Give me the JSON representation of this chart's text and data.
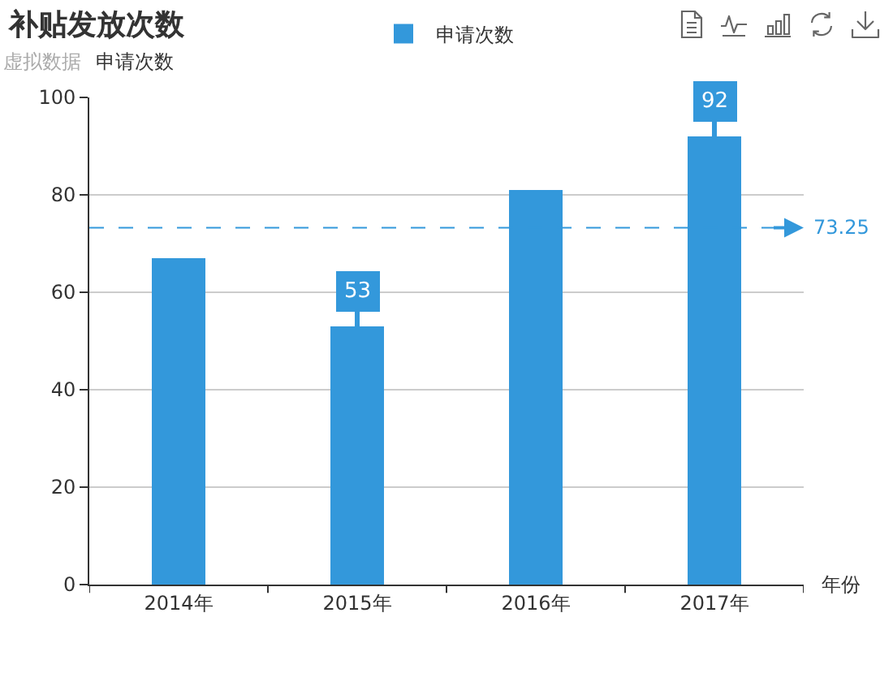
{
  "chart_data": {
    "type": "bar",
    "title": "补贴发放次数",
    "subtitle": "虚拟数据",
    "xlabel": "年份",
    "ylabel": "申请次数",
    "categories": [
      "2014年",
      "2015年",
      "2016年",
      "2017年"
    ],
    "series": [
      {
        "name": "申请次数",
        "color": "#3398db",
        "values": [
          67,
          53,
          81,
          92
        ],
        "value_labels": [
          null,
          "53",
          null,
          "92"
        ]
      }
    ],
    "ylim": [
      0,
      100
    ],
    "yticks": [
      0,
      20,
      40,
      60,
      80,
      100
    ],
    "grid": "y",
    "legend": "top",
    "ref_lines": [
      {
        "axis": "y",
        "value": 73.25,
        "label": "73.25",
        "color": "#3398db",
        "line_style": "dashed"
      }
    ]
  }
}
